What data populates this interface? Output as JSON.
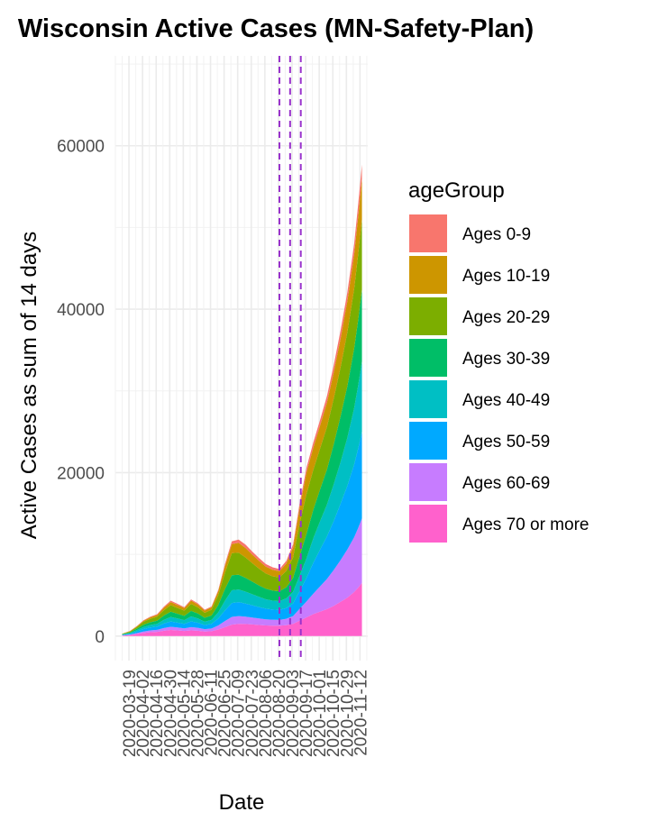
{
  "chart_data": {
    "type": "area",
    "stacked": true,
    "title": "Wisconsin Active Cases (MN-Safety-Plan)",
    "xlabel": "Date",
    "ylabel": "Active Cases as sum of 14 days",
    "xlim": [
      "2020-03-05",
      "2020-11-20"
    ],
    "ylim": [
      -3000,
      71000
    ],
    "y_ticks": [
      0,
      20000,
      40000,
      60000
    ],
    "x_tick_labels": [
      "2020-03-19",
      "2020-04-02",
      "2020-04-16",
      "2020-04-30",
      "2020-05-14",
      "2020-05-28",
      "2020-06-11",
      "2020-06-25",
      "2020-07-09",
      "2020-07-23",
      "2020-08-06",
      "2020-08-20",
      "2020-09-03",
      "2020-09-17",
      "2020-10-01",
      "2020-10-15",
      "2020-10-29",
      "2020-11-12"
    ],
    "grid": true,
    "legend": {
      "title": "ageGroup",
      "position": "right"
    },
    "vlines": [
      "2020-08-21",
      "2020-09-01",
      "2020-09-12"
    ],
    "vline_color": "#9932cc",
    "dates": [
      "2020-03-12",
      "2020-03-20",
      "2020-03-27",
      "2020-04-03",
      "2020-04-10",
      "2020-04-17",
      "2020-04-24",
      "2020-05-01",
      "2020-05-08",
      "2020-05-15",
      "2020-05-22",
      "2020-05-29",
      "2020-06-05",
      "2020-06-12",
      "2020-06-19",
      "2020-06-26",
      "2020-07-03",
      "2020-07-10",
      "2020-07-17",
      "2020-07-24",
      "2020-07-31",
      "2020-08-07",
      "2020-08-14",
      "2020-08-21",
      "2020-08-28",
      "2020-09-04",
      "2020-09-11",
      "2020-09-18",
      "2020-09-25",
      "2020-10-02",
      "2020-10-09",
      "2020-10-16",
      "2020-10-23",
      "2020-10-30",
      "2020-11-06",
      "2020-11-10",
      "2020-11-14"
    ],
    "series": [
      {
        "name": "Ages 0-9",
        "color": "#F8766D",
        "values": [
          10,
          20,
          40,
          60,
          80,
          100,
          150,
          180,
          160,
          120,
          150,
          140,
          110,
          100,
          150,
          250,
          350,
          400,
          420,
          380,
          350,
          320,
          300,
          280,
          320,
          400,
          500,
          600,
          650,
          700,
          800,
          900,
          1000,
          1100,
          1300,
          1500,
          1700
        ]
      },
      {
        "name": "Ages 10-19",
        "color": "#CD9600",
        "values": [
          20,
          40,
          80,
          130,
          180,
          220,
          300,
          380,
          350,
          300,
          400,
          350,
          280,
          300,
          500,
          800,
          1100,
          1200,
          1150,
          1050,
          950,
          850,
          800,
          750,
          900,
          1200,
          2000,
          2600,
          2700,
          2800,
          3000,
          3200,
          3500,
          3800,
          4200,
          4600,
          5000
        ]
      },
      {
        "name": "Ages 20-29",
        "color": "#7CAE00",
        "values": [
          50,
          110,
          200,
          350,
          420,
          480,
          650,
          800,
          700,
          650,
          850,
          750,
          600,
          700,
          1200,
          2000,
          2700,
          2700,
          2500,
          2250,
          2050,
          1850,
          1750,
          1700,
          2000,
          2500,
          4000,
          4900,
          4900,
          5000,
          5200,
          5600,
          6000,
          6600,
          7300,
          8000,
          8600
        ]
      },
      {
        "name": "Ages 30-39",
        "color": "#00BE67",
        "values": [
          40,
          90,
          180,
          280,
          340,
          380,
          520,
          640,
          580,
          520,
          680,
          600,
          480,
          550,
          900,
          1450,
          1850,
          1800,
          1700,
          1550,
          1400,
          1300,
          1220,
          1200,
          1350,
          1700,
          2400,
          3000,
          3500,
          3900,
          4300,
          4900,
          5600,
          6300,
          7300,
          8000,
          8800
        ]
      },
      {
        "name": "Ages 40-49",
        "color": "#00BFC4",
        "values": [
          40,
          80,
          160,
          250,
          300,
          340,
          460,
          560,
          510,
          460,
          600,
          530,
          420,
          480,
          750,
          1200,
          1550,
          1550,
          1450,
          1350,
          1250,
          1150,
          1100,
          1080,
          1180,
          1400,
          1900,
          2400,
          3000,
          3500,
          3900,
          4500,
          5100,
          5900,
          6900,
          7700,
          8600
        ]
      },
      {
        "name": "Ages 50-59",
        "color": "#00A9FF",
        "values": [
          50,
          100,
          190,
          300,
          360,
          400,
          550,
          650,
          600,
          550,
          700,
          620,
          500,
          560,
          850,
          1300,
          1700,
          1700,
          1600,
          1500,
          1400,
          1300,
          1240,
          1220,
          1320,
          1550,
          2200,
          2900,
          3800,
          4500,
          5200,
          6000,
          6900,
          7800,
          8900,
          9700,
          10600
        ]
      },
      {
        "name": "Ages 60-69",
        "color": "#C77CFF",
        "values": [
          30,
          60,
          120,
          180,
          220,
          240,
          330,
          380,
          350,
          320,
          400,
          360,
          290,
          330,
          500,
          750,
          950,
          950,
          900,
          850,
          800,
          750,
          720,
          710,
          780,
          950,
          1450,
          1950,
          2500,
          3100,
          3700,
          4400,
          5100,
          5900,
          6700,
          7300,
          7900
        ]
      },
      {
        "name": "Ages 70 or more",
        "color": "#FF61CC",
        "values": [
          60,
          120,
          250,
          380,
          470,
          520,
          650,
          750,
          700,
          620,
          700,
          650,
          550,
          600,
          800,
          1100,
          1400,
          1500,
          1480,
          1420,
          1350,
          1300,
          1280,
          1270,
          1330,
          1500,
          1900,
          2300,
          2700,
          3000,
          3300,
          3700,
          4200,
          4700,
          5400,
          5900,
          6500
        ]
      }
    ]
  }
}
